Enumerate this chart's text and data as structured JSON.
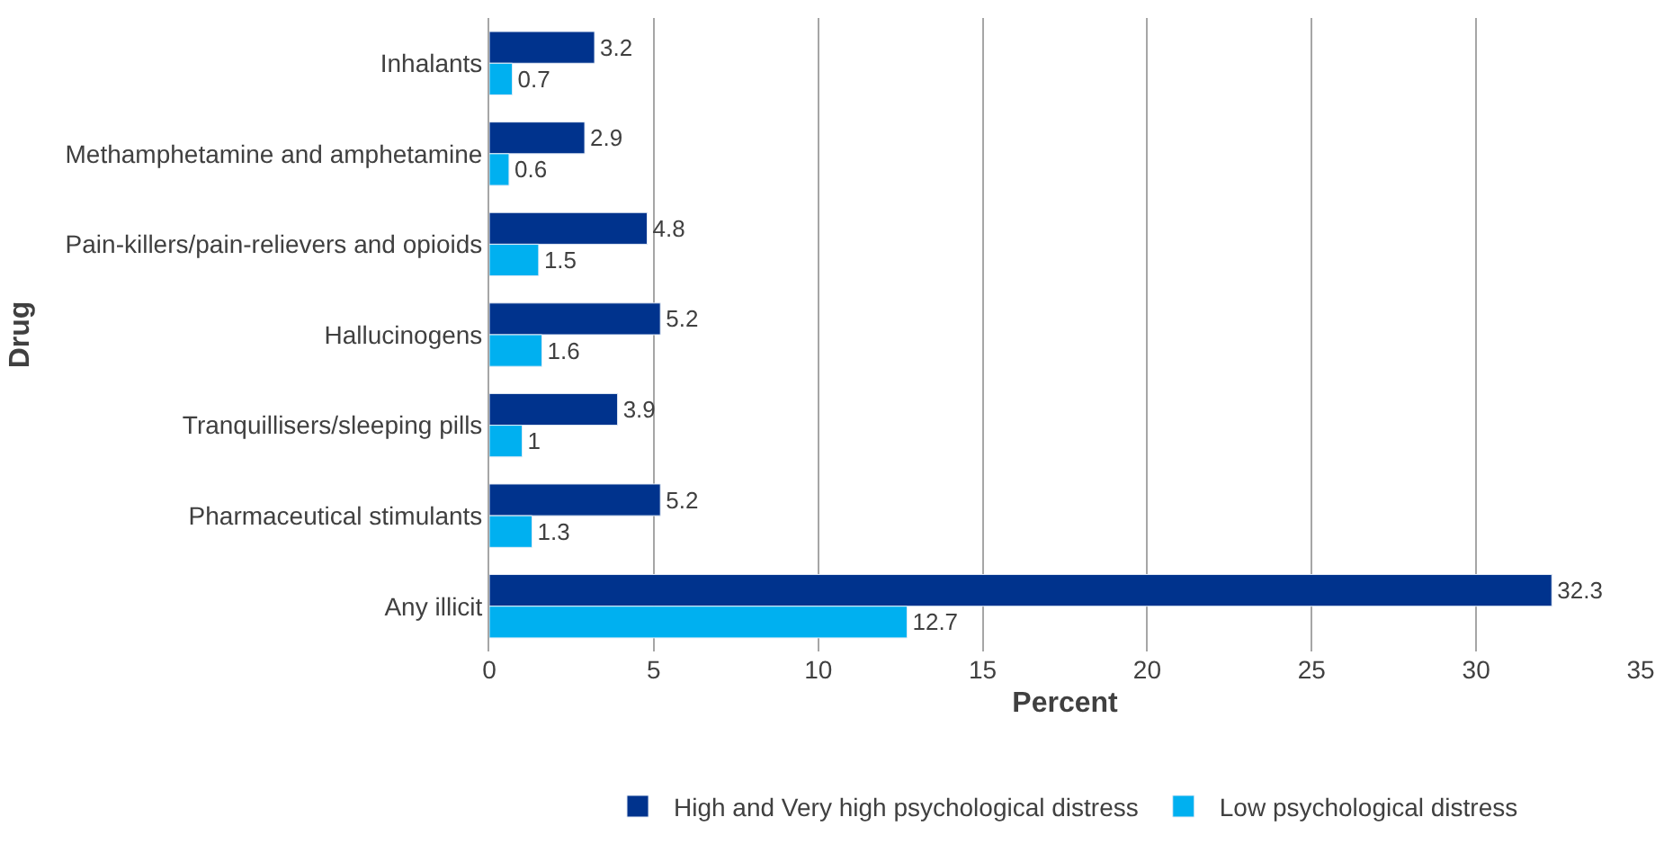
{
  "chart_data": {
    "type": "bar",
    "orientation": "horizontal",
    "xlabel": "Percent",
    "ylabel": "Drug",
    "categories": [
      "Inhalants",
      "Methamphetamine and amphetamine",
      "Pain-killers/pain-relievers and opioids",
      "Hallucinogens",
      "Tranquillisers/sleeping pills",
      "Pharmaceutical stimulants",
      "Any illicit"
    ],
    "series": [
      {
        "name": "High and Very high psychological distress",
        "color": "#00338d",
        "values": [
          3.2,
          2.9,
          4.8,
          5.2,
          3.9,
          5.2,
          32.3
        ]
      },
      {
        "name": "Low psychological distress",
        "color": "#00b0f0",
        "values": [
          0.7,
          0.6,
          1.5,
          1.6,
          1,
          1.3,
          12.7
        ]
      }
    ],
    "xlim": [
      0,
      35
    ],
    "xticks": [
      0,
      5,
      10,
      15,
      20,
      25,
      30,
      35
    ],
    "grid": "x",
    "legend": "bottom",
    "data_labels": true
  }
}
